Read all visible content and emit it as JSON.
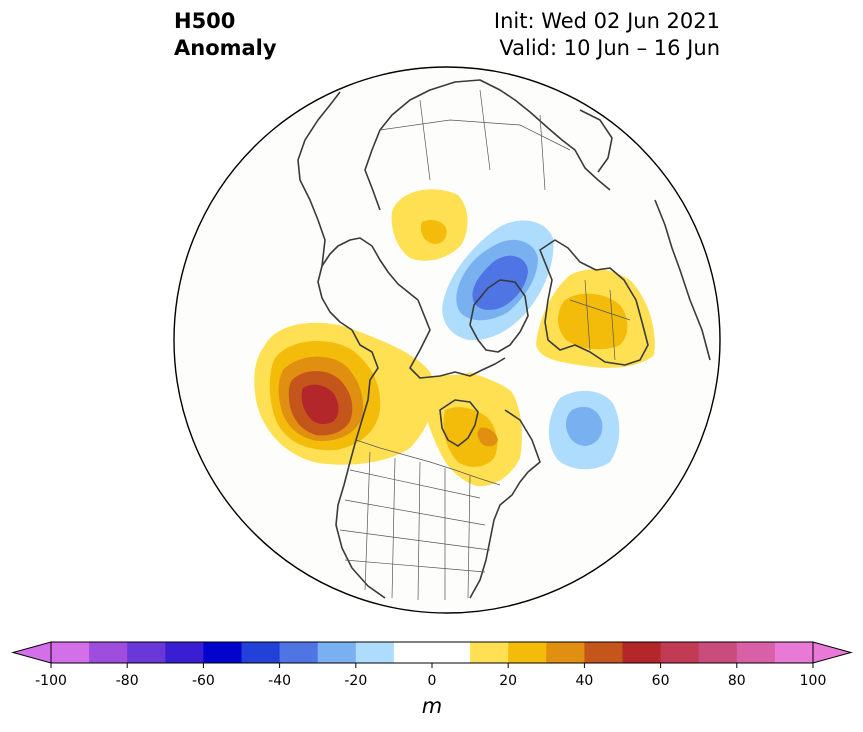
{
  "title": {
    "left_line1": "H500",
    "left_line2": "Anomaly",
    "right_line1": "Init: Wed 02 Jun 2021",
    "right_line2": "Valid: 10 Jun – 16 Jun"
  },
  "colorbar": {
    "min": -100,
    "max": 100,
    "step": 10,
    "tick_labels": [
      "-100",
      "-80",
      "-60",
      "-40",
      "-20",
      "0",
      "20",
      "40",
      "60",
      "80",
      "100"
    ],
    "colors": [
      "#d36fe9",
      "#9f4ddc",
      "#6a38d9",
      "#3a1fd2",
      "#0004cc",
      "#2241d9",
      "#4f75e5",
      "#79b1f0",
      "#aedcfc",
      "#ffffff",
      "#ffffff",
      "#ffe052",
      "#f3bc0a",
      "#e08f10",
      "#c5561b",
      "#b3262a",
      "#c23b55",
      "#ca4c7c",
      "#d960a6",
      "#e879d6"
    ],
    "extend_low_color": "#d36fe9",
    "extend_high_color": "#e879d6",
    "unit": "m"
  }
}
